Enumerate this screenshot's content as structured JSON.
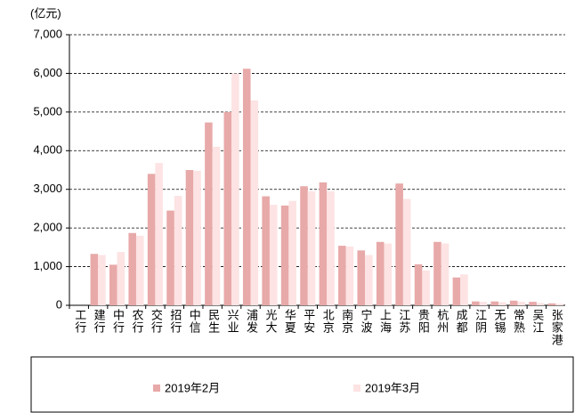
{
  "chart_data": {
    "type": "bar",
    "unit_label": "(亿元)",
    "categories": [
      "工行",
      "建行",
      "中行",
      "农行",
      "交行",
      "招行",
      "中信",
      "民生",
      "兴业",
      "浦发",
      "光大",
      "华夏",
      "平安",
      "北京",
      "南京",
      "宁波",
      "上海",
      "江苏",
      "贵阳",
      "杭州",
      "成都",
      "江阴",
      "无锡",
      "常熟",
      "吴江",
      "张家港"
    ],
    "series": [
      {
        "name": "2019年2月",
        "color": "#e8a9a9",
        "values": [
          0,
          1330,
          1050,
          1870,
          3400,
          2450,
          3500,
          4730,
          5000,
          6120,
          2820,
          2580,
          3080,
          3180,
          1540,
          1420,
          1640,
          3150,
          1060,
          1640,
          720,
          100,
          100,
          120,
          90,
          50
        ]
      },
      {
        "name": "2019年3月",
        "color": "#fde3e3",
        "values": [
          0,
          1300,
          1380,
          1800,
          3680,
          2830,
          3480,
          4100,
          6000,
          5300,
          2600,
          2700,
          2950,
          2950,
          1520,
          1300,
          1600,
          2750,
          900,
          1600,
          800,
          90,
          80,
          90,
          60,
          40
        ]
      }
    ],
    "ylim": [
      0,
      7000
    ],
    "yticks": [
      0,
      {
        "value": 1000,
        "label": "1,000"
      },
      {
        "value": 2000,
        "label": "2,000"
      },
      {
        "value": 3000,
        "label": "3,000"
      },
      {
        "value": 4000,
        "label": "4,000"
      },
      {
        "value": 5000,
        "label": "5,000"
      },
      {
        "value": 6000,
        "label": "6,000"
      },
      {
        "value": 7000,
        "label": "7,000"
      }
    ],
    "grid": true
  }
}
